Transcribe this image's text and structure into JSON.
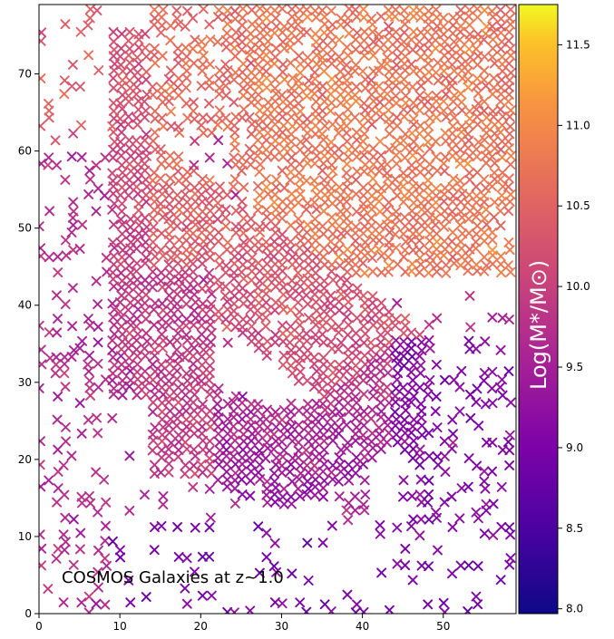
{
  "chart_data": {
    "type": "scatter",
    "title": "",
    "annotation": "COSMOS Galaxies at z~1.0",
    "xlabel": "",
    "ylabel": "",
    "xlim": [
      0,
      59
    ],
    "ylim": [
      0,
      79
    ],
    "x_ticks": [
      0,
      10,
      20,
      30,
      40,
      50
    ],
    "y_ticks": [
      0,
      10,
      20,
      30,
      40,
      50,
      60,
      70
    ],
    "marker": "x",
    "grid": false,
    "colormap": "plasma",
    "colorbar": {
      "label": "Log(M*/M⊙)",
      "range": [
        7.97,
        11.75
      ],
      "ticks": [
        8.0,
        8.5,
        9.0,
        9.5,
        10.0,
        10.5,
        11.0,
        11.5
      ],
      "tick_labels": [
        "8.0",
        "8.5",
        "9.0",
        "9.5",
        "10.0",
        "10.5",
        "11.0",
        "11.5"
      ]
    },
    "density_regions": [
      {
        "name": "upper-right cluster",
        "x_range": [
          25,
          59
        ],
        "y_range": [
          42,
          79
        ],
        "typical_value": 10.7
      },
      {
        "name": "left vertical band",
        "x_range": [
          9,
          14
        ],
        "y_range": [
          30,
          75
        ],
        "typical_value": 10.4
      },
      {
        "name": "diagonal ridge",
        "x_range": [
          15,
          48
        ],
        "y_range": [
          25,
          52
        ],
        "typical_value": 10.2
      },
      {
        "name": "bottom arc",
        "x_range": [
          14,
          44
        ],
        "y_range": [
          12,
          30
        ],
        "typical_value": 9.5
      },
      {
        "name": "right sparse tail",
        "x_range": [
          44,
          59
        ],
        "y_range": [
          10,
          35
        ],
        "typical_value": 9.2
      }
    ]
  }
}
